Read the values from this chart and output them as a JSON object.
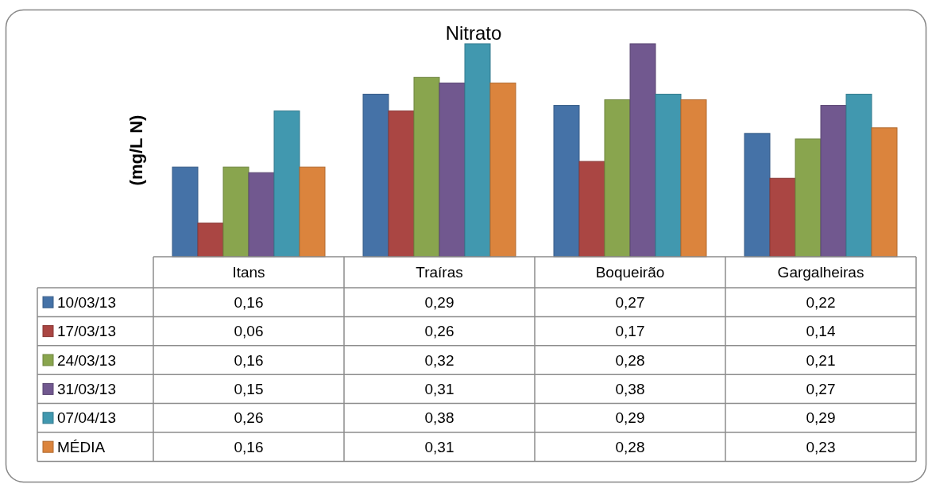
{
  "chart_data": {
    "type": "bar",
    "title": "Nitrato",
    "ylabel": "(mg/L N)",
    "categories": [
      "Itans",
      "Traíras",
      "Boqueirão",
      "Gargalheiras"
    ],
    "series": [
      {
        "name": "10/03/13",
        "color": "#4572a7",
        "values": [
          0.16,
          0.29,
          0.27,
          0.22
        ],
        "value_labels": [
          "0,16",
          "0,29",
          "0,27",
          "0,22"
        ]
      },
      {
        "name": "17/03/13",
        "color": "#aa4643",
        "values": [
          0.06,
          0.26,
          0.17,
          0.14
        ],
        "value_labels": [
          "0,06",
          "0,26",
          "0,17",
          "0,14"
        ]
      },
      {
        "name": "24/03/13",
        "color": "#89a54e",
        "values": [
          0.16,
          0.32,
          0.28,
          0.21
        ],
        "value_labels": [
          "0,16",
          "0,32",
          "0,28",
          "0,21"
        ]
      },
      {
        "name": "31/03/13",
        "color": "#71588f",
        "values": [
          0.15,
          0.31,
          0.38,
          0.27
        ],
        "value_labels": [
          "0,15",
          "0,31",
          "0,38",
          "0,27"
        ]
      },
      {
        "name": "07/04/13",
        "color": "#4198af",
        "values": [
          0.26,
          0.38,
          0.29,
          0.29
        ],
        "value_labels": [
          "0,26",
          "0,38",
          "0,29",
          "0,29"
        ]
      },
      {
        "name": "MÉDIA",
        "color": "#db843d",
        "values": [
          0.16,
          0.31,
          0.28,
          0.23
        ],
        "value_labels": [
          "0,16",
          "0,31",
          "0,28",
          "0,23"
        ]
      }
    ],
    "legend": "bottom",
    "tick_labels": "x"
  }
}
